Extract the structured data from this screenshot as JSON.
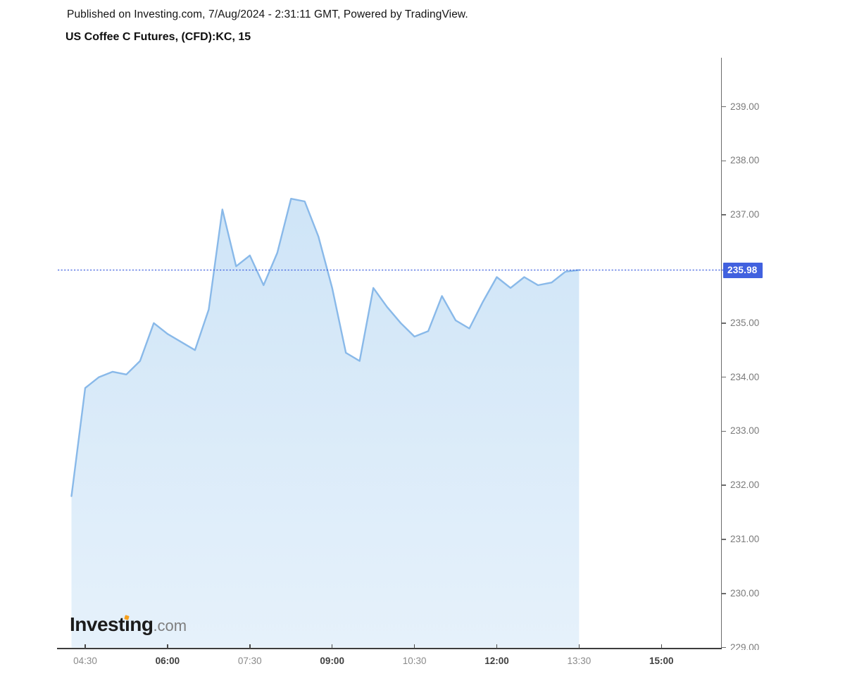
{
  "header": {
    "published_line": "Published on Investing.com, 7/Aug/2024 - 2:31:11 GMT, Powered by TradingView.",
    "instrument_title": "US Coffee C Futures, (CFD):KC, 15"
  },
  "logo": {
    "text": "Investing.com",
    "prefix": "Invest",
    "dotless_i": "ı",
    "suffix": "ng",
    "domain": ".com",
    "dot_color": "#f6a01e"
  },
  "price_axis": {
    "tick_labels": [
      "239.00",
      "238.00",
      "237.00",
      "235.00",
      "234.00",
      "233.00",
      "232.00",
      "231.00",
      "230.00",
      "229.00"
    ],
    "last_price_label": "235.98"
  },
  "time_axis": {
    "ticks": [
      {
        "label": "04:30",
        "emphasis": false
      },
      {
        "label": "06:00",
        "emphasis": true
      },
      {
        "label": "07:30",
        "emphasis": false
      },
      {
        "label": "09:00",
        "emphasis": true
      },
      {
        "label": "10:30",
        "emphasis": false
      },
      {
        "label": "12:00",
        "emphasis": true
      },
      {
        "label": "13:30",
        "emphasis": false
      },
      {
        "label": "15:00",
        "emphasis": true
      }
    ]
  },
  "chart_data": {
    "type": "area",
    "title": "US Coffee C Futures, (CFD):KC, 15",
    "symbol": "(CFD):KC",
    "interval_minutes": 15,
    "x": [
      "04:15",
      "04:30",
      "04:45",
      "05:00",
      "05:15",
      "05:30",
      "05:45",
      "06:00",
      "06:15",
      "06:30",
      "06:45",
      "07:00",
      "07:15",
      "07:30",
      "07:45",
      "08:00",
      "08:15",
      "08:30",
      "08:45",
      "09:00",
      "09:15",
      "09:30",
      "09:45",
      "10:00",
      "10:15",
      "10:30",
      "10:45",
      "11:00",
      "11:15",
      "11:30",
      "11:45",
      "12:00",
      "12:15",
      "12:30",
      "12:45",
      "13:00",
      "13:15",
      "13:30"
    ],
    "values": [
      231.8,
      233.8,
      234.0,
      234.1,
      234.05,
      234.3,
      235.0,
      234.8,
      234.65,
      234.5,
      235.25,
      237.1,
      236.05,
      236.25,
      235.7,
      236.3,
      237.3,
      237.25,
      236.6,
      235.65,
      234.45,
      234.3,
      235.65,
      235.3,
      235.0,
      234.75,
      234.85,
      235.5,
      235.05,
      234.9,
      235.4,
      235.85,
      235.65,
      235.85,
      235.7,
      235.75,
      235.95,
      235.98
    ],
    "last_price": 235.98,
    "ylim": [
      229.0,
      239.9
    ],
    "x_visible_range": [
      "04:00",
      "16:05"
    ],
    "grid": false,
    "legend": "none",
    "line_color": "#89b9e9",
    "fill_color_top": "rgba(140,192,236,0.42)",
    "fill_color_bottom": "rgba(140,192,236,0.22)",
    "dotted_line_color": "#4161df",
    "badge_color": "#4161df"
  }
}
